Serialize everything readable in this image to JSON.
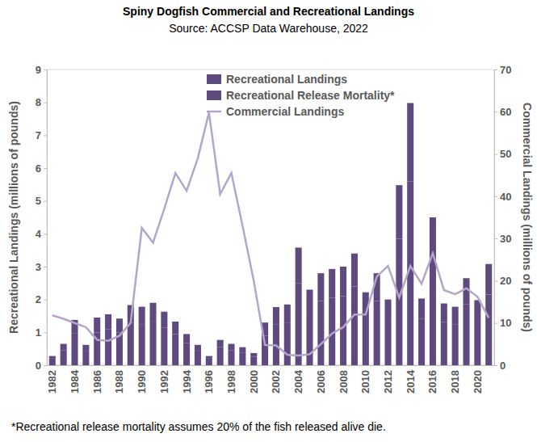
{
  "chart_data": {
    "type": "bar",
    "title": "Spiny Dogfish Commercial and Recreational Landings",
    "subtitle": "Source: ACCSP Data Warehouse, 2022",
    "y_label": "Recreational Landings (millions of pounds)",
    "y2_label": "Commercial Landings (millions of pounds)",
    "annotations": [
      "*Recreational release mortality assumes 20% of the fish released alive die."
    ],
    "categories": [
      "1982",
      null,
      "1984",
      null,
      "1986",
      null,
      "1988",
      null,
      "1990",
      null,
      "1992",
      null,
      "1994",
      null,
      "1996",
      null,
      "1998",
      null,
      "2000",
      null,
      "2002",
      null,
      "2004",
      null,
      "2006",
      null,
      "2008",
      null,
      "2010",
      null,
      "2012",
      null,
      "2014",
      null,
      "2016",
      null,
      "2018",
      null,
      "2020",
      null
    ],
    "stacked": true,
    "grid": false,
    "legend": "top",
    "ylim": [
      0,
      9
    ],
    "yticks": [
      0,
      1,
      2,
      3,
      4,
      5,
      6,
      7,
      8,
      9
    ],
    "y2lim": [
      0,
      70
    ],
    "y2ticks": [
      0,
      10,
      20,
      30,
      40,
      50,
      60,
      70
    ],
    "series": [
      {
        "name": "Recreational Landings",
        "type": "bar",
        "color": "#5f4a80",
        "values": [
          0.2,
          0.45,
          0.98,
          0.44,
          1.0,
          1.1,
          1.0,
          1.3,
          1.25,
          1.35,
          1.15,
          0.95,
          0.67,
          0.44,
          0.2,
          0.55,
          0.45,
          0.39,
          0.26,
          0.9,
          1.25,
          1.3,
          2.5,
          1.6,
          1.95,
          2.05,
          2.1,
          2.4,
          1.55,
          1.95,
          1.4,
          3.85,
          5.6,
          1.42,
          3.15,
          1.32,
          1.25,
          1.85,
          1.4,
          2.15
        ]
      },
      {
        "name": "Recreational Release Mortality*",
        "type": "bar",
        "color": "#5f4a80",
        "values": [
          0.08,
          0.2,
          0.4,
          0.18,
          0.45,
          0.45,
          0.42,
          0.53,
          0.53,
          0.55,
          0.48,
          0.38,
          0.28,
          0.18,
          0.08,
          0.22,
          0.2,
          0.16,
          0.11,
          0.4,
          0.52,
          0.55,
          1.08,
          0.7,
          0.85,
          0.88,
          0.9,
          1.0,
          0.67,
          0.85,
          0.6,
          1.63,
          2.38,
          0.61,
          1.35,
          0.56,
          0.53,
          0.8,
          0.58,
          0.93
        ]
      },
      {
        "name": "Commercial Landings",
        "type": "line",
        "axis": "y2",
        "color": "#b3a6c9",
        "values": [
          11.8,
          11,
          10,
          9,
          6,
          5.8,
          7,
          10,
          32.5,
          29,
          37,
          45.5,
          41.3,
          49,
          59.8,
          40.5,
          45.5,
          33,
          20,
          4.8,
          4.7,
          2.5,
          2.3,
          2.6,
          5,
          7.5,
          9,
          12,
          12,
          21,
          23.5,
          16,
          23.5,
          19.3,
          26.5,
          17.8,
          16.8,
          18.2,
          16.2,
          11.2
        ]
      }
    ]
  }
}
